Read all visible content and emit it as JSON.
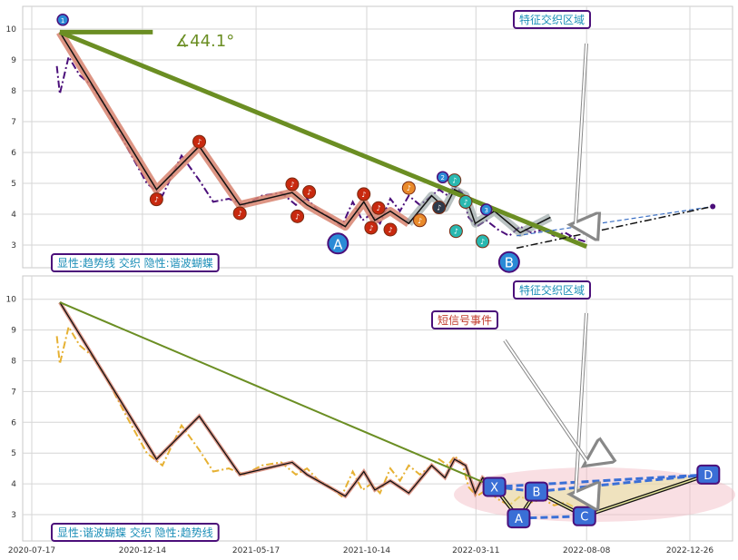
{
  "chart_data": [
    {
      "type": "line",
      "panel": "top",
      "ylim": [
        2.2,
        10.7
      ],
      "yticks": [
        3,
        4,
        5,
        6,
        7,
        8,
        9,
        10
      ],
      "grid": true,
      "angle_label": "∡44.1°",
      "region_label": "特征交织区域",
      "legend_label": "显性:趋势线 交织 隐性:谐波蝴蝶",
      "pattern_points": [
        "A",
        "B"
      ],
      "badge_labels": [
        "1",
        "2",
        "3"
      ],
      "price_series": {
        "x": [
          "2020-08-20",
          "2020-08-24",
          "2020-09-05",
          "2020-09-20",
          "2020-10-05",
          "2020-10-25",
          "2020-11-20",
          "2020-12-20",
          "2021-01-10",
          "2021-02-05",
          "2021-03-01",
          "2021-03-20",
          "2021-04-10",
          "2021-05-01",
          "2021-05-25",
          "2021-06-20",
          "2021-07-10",
          "2021-07-25",
          "2021-08-10",
          "2021-08-25",
          "2021-09-10",
          "2021-09-25",
          "2021-10-08",
          "2021-10-20",
          "2021-11-01",
          "2021-11-15",
          "2021-11-28",
          "2021-12-10",
          "2021-12-25",
          "2022-01-05",
          "2022-01-20",
          "2022-02-01",
          "2022-02-10",
          "2022-02-20",
          "2022-03-01",
          "2022-03-12",
          "2022-03-25",
          "2022-04-10",
          "2022-04-25",
          "2022-05-10",
          "2022-05-25",
          "2022-06-10",
          "2022-06-25",
          "2022-07-10",
          "2022-07-25",
          "2022-08-08"
        ],
        "y": [
          8.8,
          7.9,
          9.1,
          8.5,
          8.2,
          7.5,
          6.3,
          5.0,
          4.6,
          5.9,
          5.1,
          4.4,
          4.5,
          4.3,
          4.6,
          4.7,
          4.3,
          4.5,
          4.1,
          3.9,
          3.6,
          4.4,
          3.8,
          4.0,
          3.7,
          4.5,
          4.1,
          4.6,
          4.3,
          4.5,
          4.8,
          4.6,
          4.9,
          4.7,
          3.9,
          3.6,
          3.8,
          3.5,
          3.3,
          3.6,
          3.4,
          3.5,
          3.3,
          3.4,
          3.2,
          3.1
        ]
      },
      "zigzag": {
        "x": [
          "2020-08-24",
          "2021-01-02",
          "2021-03-01",
          "2021-04-25",
          "2021-07-05",
          "2021-07-25",
          "2021-09-15",
          "2021-10-10",
          "2021-10-25",
          "2021-11-15",
          "2021-12-10",
          "2022-01-10",
          "2022-01-28",
          "2022-02-10",
          "2022-02-25",
          "2022-03-10",
          "2022-04-05",
          "2022-05-10",
          "2022-06-20"
        ],
        "y": [
          9.9,
          4.8,
          6.2,
          4.3,
          4.7,
          4.3,
          3.6,
          4.4,
          3.8,
          4.1,
          3.7,
          4.6,
          4.2,
          4.8,
          4.6,
          3.7,
          4.1,
          3.4,
          3.9
        ]
      },
      "trendline": {
        "x": [
          "2020-08-24",
          "2022-08-08"
        ],
        "y": [
          9.9,
          2.95
        ]
      },
      "horizontal_ref": {
        "x": [
          "2020-08-24",
          "2020-12-28"
        ],
        "y": [
          9.9,
          9.9
        ]
      },
      "projection": {
        "x": [
          "2022-05-05",
          "2023-01-26"
        ],
        "y": [
          2.9,
          4.25
        ]
      },
      "dashed_projection": {
        "x": [
          "2022-05-05",
          "2023-01-26"
        ],
        "y": [
          3.3,
          4.25
        ]
      }
    },
    {
      "type": "line",
      "panel": "bottom",
      "ylim": [
        2.2,
        10.7
      ],
      "yticks": [
        3,
        4,
        5,
        6,
        7,
        8,
        9,
        10
      ],
      "xticks": [
        "2020-07-17",
        "2020-12-14",
        "2021-05-17",
        "2021-10-14",
        "2022-03-11",
        "2022-08-08",
        "2022-12-26"
      ],
      "grid": true,
      "region_label": "特征交织区域",
      "event_label": "短信号事件",
      "legend_label": "显性:谐波蝴蝶 交织 隐性:趋势线",
      "harmonic_points": {
        "labels": [
          "X",
          "A",
          "B",
          "C",
          "D"
        ],
        "x": [
          "2022-04-05",
          "2022-05-08",
          "2022-06-01",
          "2022-08-05",
          "2023-01-20"
        ],
        "y": [
          3.9,
          2.88,
          3.75,
          2.95,
          4.3
        ]
      },
      "trendline": {
        "x": [
          "2020-08-24",
          "2022-04-05"
        ],
        "y": [
          9.9,
          3.9
        ]
      }
    }
  ]
}
